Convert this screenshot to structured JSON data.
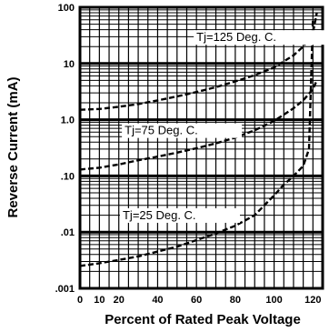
{
  "chart_data": {
    "type": "line",
    "title": "",
    "xlabel": "Percent of Rated Peak Voltage",
    "ylabel": "Reverse Current (mA)",
    "x_scale": "linear",
    "y_scale": "log",
    "xlim": [
      0,
      125
    ],
    "ylim": [
      0.001,
      100
    ],
    "x_ticks": [
      "0",
      "10",
      "20",
      "40",
      "60",
      "80",
      "100",
      "120"
    ],
    "x_tick_values": [
      0,
      10,
      20,
      40,
      60,
      80,
      100,
      120
    ],
    "y_ticks": [
      "100",
      "10",
      "1.0",
      ".10",
      ".01",
      ".001"
    ],
    "y_tick_values": [
      100,
      10,
      1,
      0.1,
      0.01,
      0.001
    ],
    "grid": true,
    "series": [
      {
        "name": "Tj=125 Deg. C.",
        "x": [
          0,
          10,
          20,
          30,
          40,
          50,
          60,
          70,
          80,
          90,
          100,
          110,
          115,
          120,
          122
        ],
        "y": [
          1.5,
          1.55,
          1.7,
          1.9,
          2.2,
          2.6,
          3.1,
          3.8,
          4.8,
          6.2,
          8.5,
          14,
          20,
          35,
          80
        ]
      },
      {
        "name": "Tj=75 Deg. C.",
        "x": [
          0,
          10,
          20,
          30,
          40,
          50,
          60,
          70,
          80,
          90,
          100,
          110,
          115,
          120,
          122
        ],
        "y": [
          0.13,
          0.14,
          0.16,
          0.19,
          0.22,
          0.26,
          0.31,
          0.38,
          0.48,
          0.65,
          0.95,
          1.6,
          2.2,
          3.5,
          5
        ]
      },
      {
        "name": "Tj=25 Deg. C.",
        "x": [
          0,
          10,
          20,
          30,
          40,
          50,
          60,
          70,
          80,
          90,
          100,
          105,
          110,
          115,
          118,
          120
        ],
        "y": [
          0.0025,
          0.0028,
          0.0032,
          0.0037,
          0.0045,
          0.0055,
          0.0072,
          0.0095,
          0.013,
          0.02,
          0.045,
          0.07,
          0.1,
          0.15,
          0.3,
          60
        ]
      }
    ]
  }
}
